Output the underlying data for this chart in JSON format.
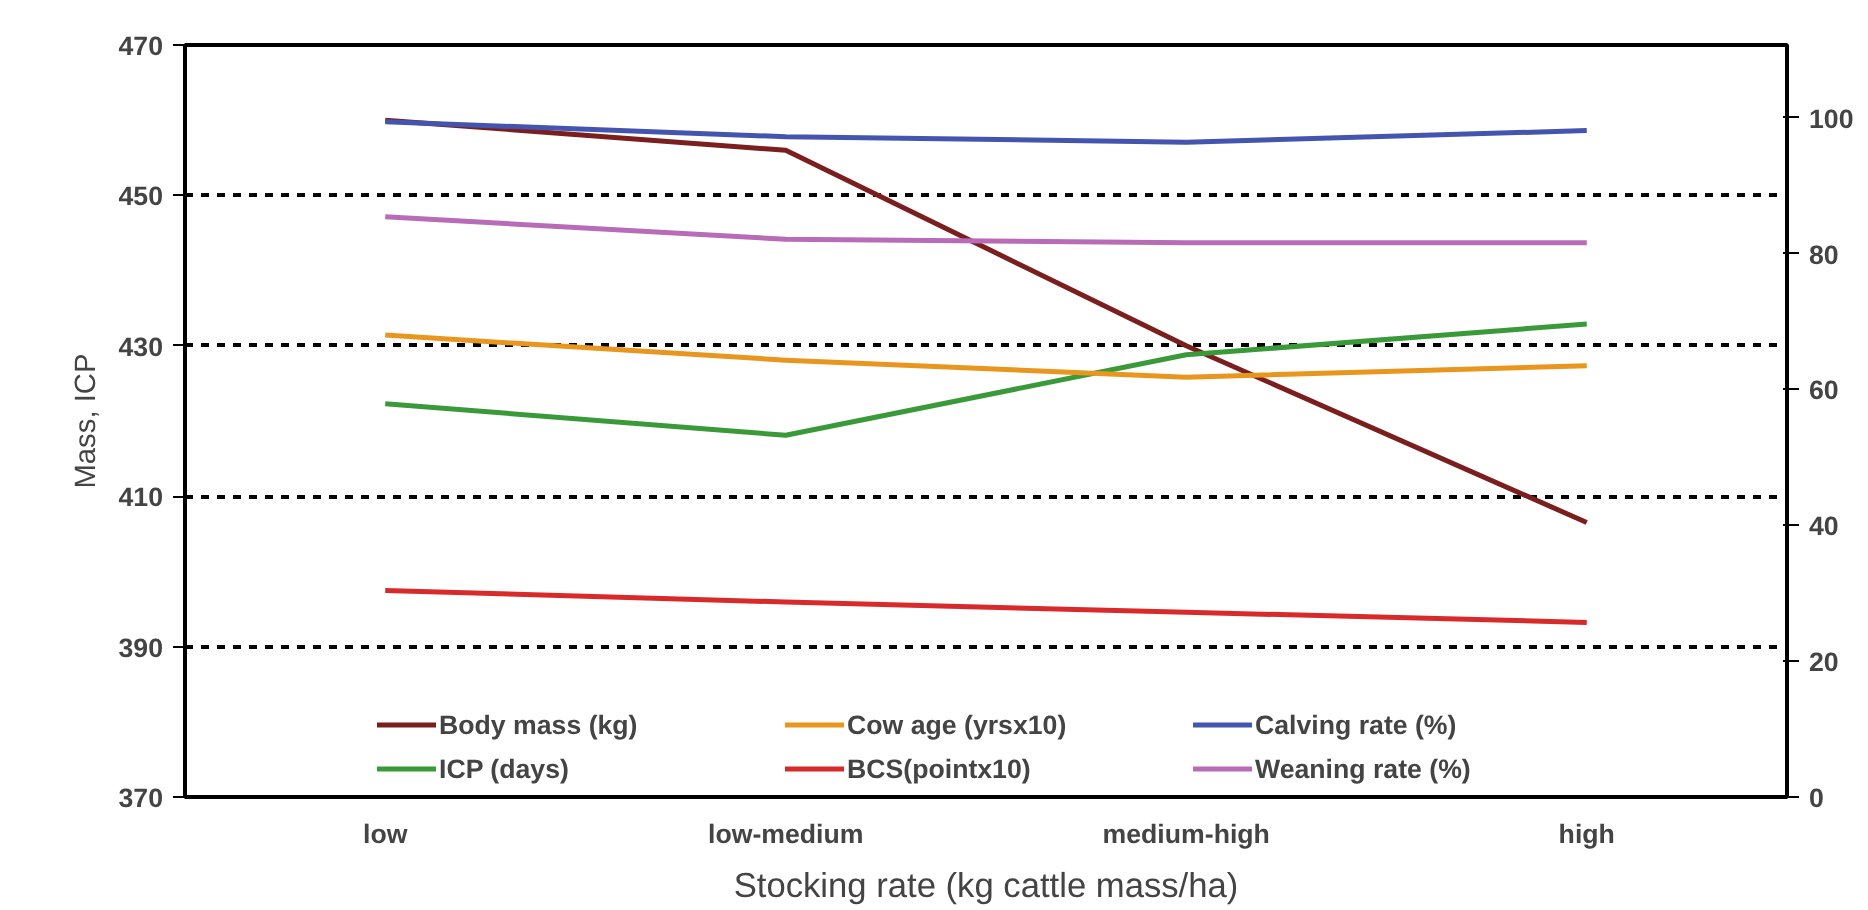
{
  "chart_data": {
    "type": "line",
    "xlabel": "Stocking rate (kg cattle mass/ha)",
    "ylabel": "Mass, ICP",
    "categories": [
      "low",
      "low-medium",
      "medium-high",
      "high"
    ],
    "ylim": [
      370,
      470
    ],
    "yticks": [
      370,
      390,
      410,
      430,
      450,
      470
    ],
    "y2lim": [
      0,
      110.7
    ],
    "y2ticks": [
      0,
      20,
      40,
      60,
      80,
      100
    ],
    "grid": "y",
    "legend": "bottom",
    "line_style": "solid",
    "series": [
      {
        "name": "Body mass (kg)",
        "color": "#7b1e1e",
        "values": [
          460,
          456,
          430,
          406.5
        ]
      },
      {
        "name": "ICP (days)",
        "color": "#3a9a3a",
        "values": [
          422.3,
          418.1,
          428.8,
          432.9
        ]
      },
      {
        "name": "Cow age (yrsx10)",
        "color": "#e8961e",
        "axis": "y2",
        "values": [
          68,
          64.3,
          61.8,
          63.5
        ]
      },
      {
        "name": "BCS(pointx10)",
        "color": "#d82a2a",
        "axis": "y2",
        "values": [
          30.4,
          28.7,
          27.2,
          25.7
        ]
      },
      {
        "name": "Calving rate (%)",
        "color": "#4455b0",
        "axis": "y2",
        "values": [
          99.4,
          97.2,
          96.4,
          98.1
        ]
      },
      {
        "name": "Weaning rate (%)",
        "color": "#b86cb8",
        "axis": "y2",
        "values": [
          85.4,
          82.1,
          81.6,
          81.6
        ]
      }
    ]
  }
}
